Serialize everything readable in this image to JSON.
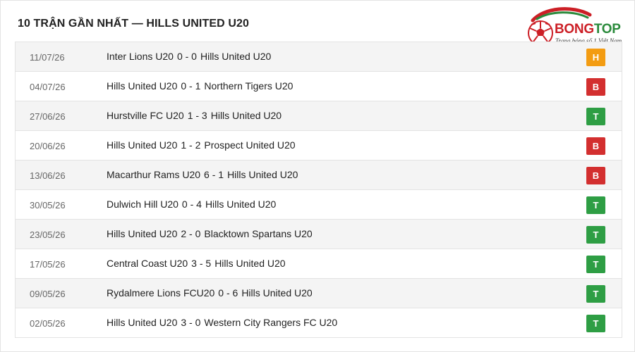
{
  "header": {
    "title": "10 TRẬN GẦN NHẤT — HILLS UNITED U20"
  },
  "logo": {
    "word_red": "BONG",
    "word_green": "TOP",
    "tagline": "Trang bóng số 1 Việt Nam",
    "colors": {
      "red": "#cc1f26",
      "green": "#2a8a3b"
    }
  },
  "result_colors": {
    "H": "#f39c12",
    "B": "#d32f2f",
    "T": "#2e9e44"
  },
  "matches": [
    {
      "date": "11/07/26",
      "home": "Inter Lions U20",
      "score": "0 - 0",
      "away": "Hills United U20",
      "result": "H"
    },
    {
      "date": "04/07/26",
      "home": "Hills United U20",
      "score": "0 - 1",
      "away": "Northern Tigers U20",
      "result": "B"
    },
    {
      "date": "27/06/26",
      "home": "Hurstville FC U20",
      "score": "1 - 3",
      "away": "Hills United U20",
      "result": "T"
    },
    {
      "date": "20/06/26",
      "home": "Hills United U20",
      "score": "1 - 2",
      "away": "Prospect United U20",
      "result": "B"
    },
    {
      "date": "13/06/26",
      "home": "Macarthur Rams U20",
      "score": "6 - 1",
      "away": "Hills United U20",
      "result": "B"
    },
    {
      "date": "30/05/26",
      "home": "Dulwich Hill U20",
      "score": "0 - 4",
      "away": "Hills United U20",
      "result": "T"
    },
    {
      "date": "23/05/26",
      "home": "Hills United U20",
      "score": "2 - 0",
      "away": "Blacktown Spartans U20",
      "result": "T"
    },
    {
      "date": "17/05/26",
      "home": "Central Coast U20",
      "score": "3 - 5",
      "away": "Hills United U20",
      "result": "T"
    },
    {
      "date": "09/05/26",
      "home": "Rydalmere Lions FCU20",
      "score": "0 - 6",
      "away": "Hills United U20",
      "result": "T"
    },
    {
      "date": "02/05/26",
      "home": "Hills United U20",
      "score": "3 - 0",
      "away": "Western City Rangers FC U20",
      "result": "T"
    }
  ]
}
